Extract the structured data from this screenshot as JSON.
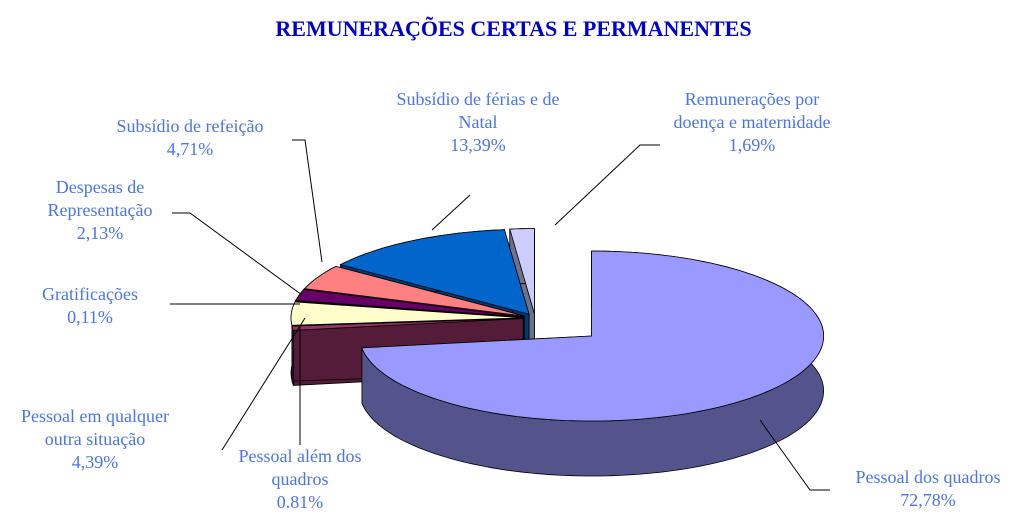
{
  "chart_data": {
    "type": "pie3d",
    "title": "REMUNERAÇÕES CERTAS E PERMANENTES",
    "categories": [
      "Pessoal dos quadros",
      "Pessoal além dos quadros",
      "Pessoal em qualquer outra situação",
      "Gratificações",
      "Despesas de Representação",
      "Subsídio de refeição",
      "Subsídio de férias e de Natal",
      "Remunerações por doença e maternidade"
    ],
    "values": [
      72.78,
      0.81,
      4.39,
      0.11,
      2.13,
      4.71,
      13.39,
      1.69
    ],
    "value_labels": [
      "72,78%",
      "0.81%",
      "4,39%",
      "0,11%",
      "2,13%",
      "4,71%",
      "13,39%",
      "1,69%"
    ],
    "colors": [
      "#9999ff",
      "#993366",
      "#ffffcc",
      "#ccffff",
      "#660066",
      "#ff8080",
      "#0066cc",
      "#ccccff"
    ]
  }
}
